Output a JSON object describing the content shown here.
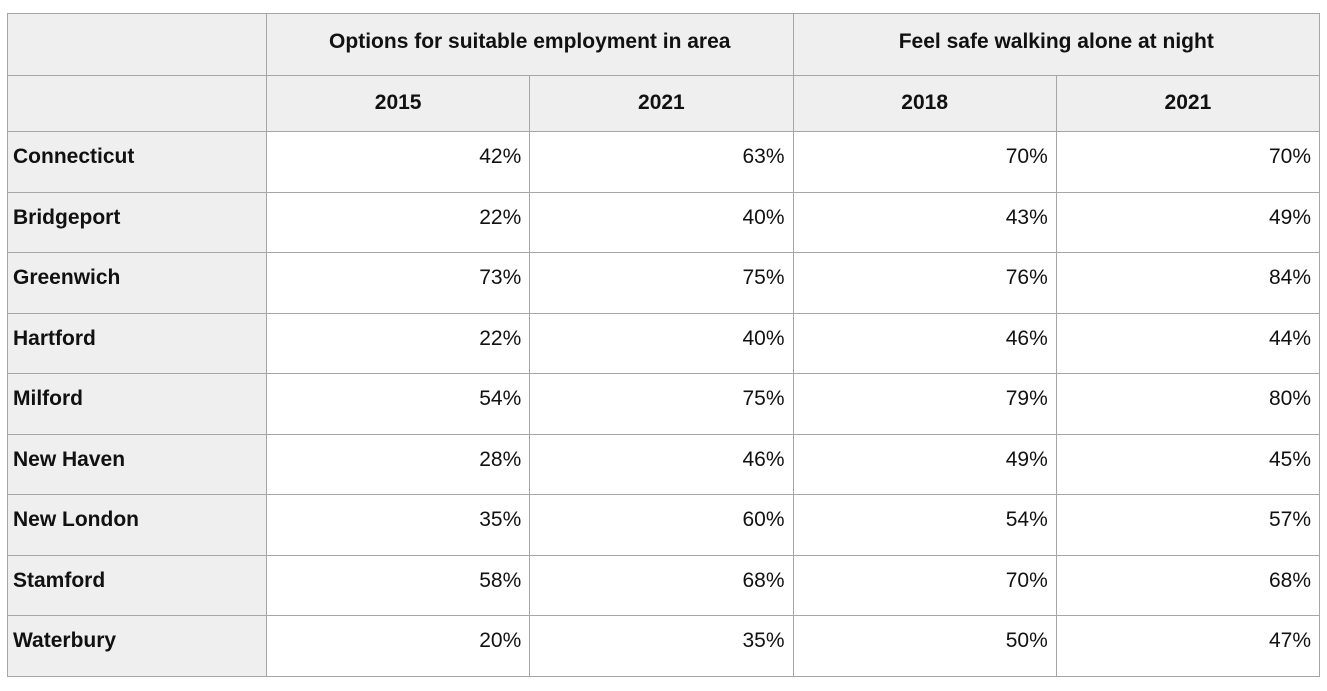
{
  "table": {
    "group_headers": [
      {
        "label": "",
        "span": 1
      },
      {
        "label": "Options for suitable employment in area",
        "span": 2
      },
      {
        "label": "Feel safe walking alone at night",
        "span": 2
      }
    ],
    "year_headers": [
      "2015",
      "2021",
      "2018",
      "2021"
    ],
    "rows": [
      {
        "label": "Connecticut",
        "values": [
          "42%",
          "63%",
          "70%",
          "70%"
        ]
      },
      {
        "label": "Bridgeport",
        "values": [
          "22%",
          "40%",
          "43%",
          "49%"
        ]
      },
      {
        "label": "Greenwich",
        "values": [
          "73%",
          "75%",
          "76%",
          "84%"
        ]
      },
      {
        "label": "Hartford",
        "values": [
          "22%",
          "40%",
          "46%",
          "44%"
        ]
      },
      {
        "label": "Milford",
        "values": [
          "54%",
          "75%",
          "79%",
          "80%"
        ]
      },
      {
        "label": "New Haven",
        "values": [
          "28%",
          "46%",
          "49%",
          "45%"
        ]
      },
      {
        "label": "New London",
        "values": [
          "35%",
          "60%",
          "54%",
          "57%"
        ]
      },
      {
        "label": "Stamford",
        "values": [
          "58%",
          "68%",
          "70%",
          "68%"
        ]
      },
      {
        "label": "Waterbury",
        "values": [
          "20%",
          "35%",
          "50%",
          "47%"
        ]
      }
    ]
  },
  "colors": {
    "header_bg": "#efefef",
    "row_label_bg": "#efefef",
    "cell_bg": "#ffffff",
    "border": "#a6a6a6",
    "text": "#111111"
  },
  "chart_data": {
    "type": "table",
    "title": "",
    "categories": [
      "Connecticut",
      "Bridgeport",
      "Greenwich",
      "Hartford",
      "Milford",
      "New Haven",
      "New London",
      "Stamford",
      "Waterbury"
    ],
    "column_groups": [
      {
        "label": "Options for suitable employment in area",
        "columns": [
          "2015",
          "2021"
        ]
      },
      {
        "label": "Feel safe walking alone at night",
        "columns": [
          "2018",
          "2021"
        ]
      }
    ],
    "unit": "%",
    "series": [
      {
        "name": "Options for suitable employment in area - 2015",
        "values": [
          42,
          22,
          73,
          22,
          54,
          28,
          35,
          58,
          20
        ]
      },
      {
        "name": "Options for suitable employment in area - 2021",
        "values": [
          63,
          40,
          75,
          40,
          75,
          46,
          60,
          68,
          35
        ]
      },
      {
        "name": "Feel safe walking alone at night - 2018",
        "values": [
          70,
          43,
          76,
          46,
          79,
          49,
          54,
          70,
          50
        ]
      },
      {
        "name": "Feel safe walking alone at night - 2021",
        "values": [
          70,
          49,
          84,
          44,
          80,
          45,
          57,
          68,
          47
        ]
      }
    ]
  }
}
